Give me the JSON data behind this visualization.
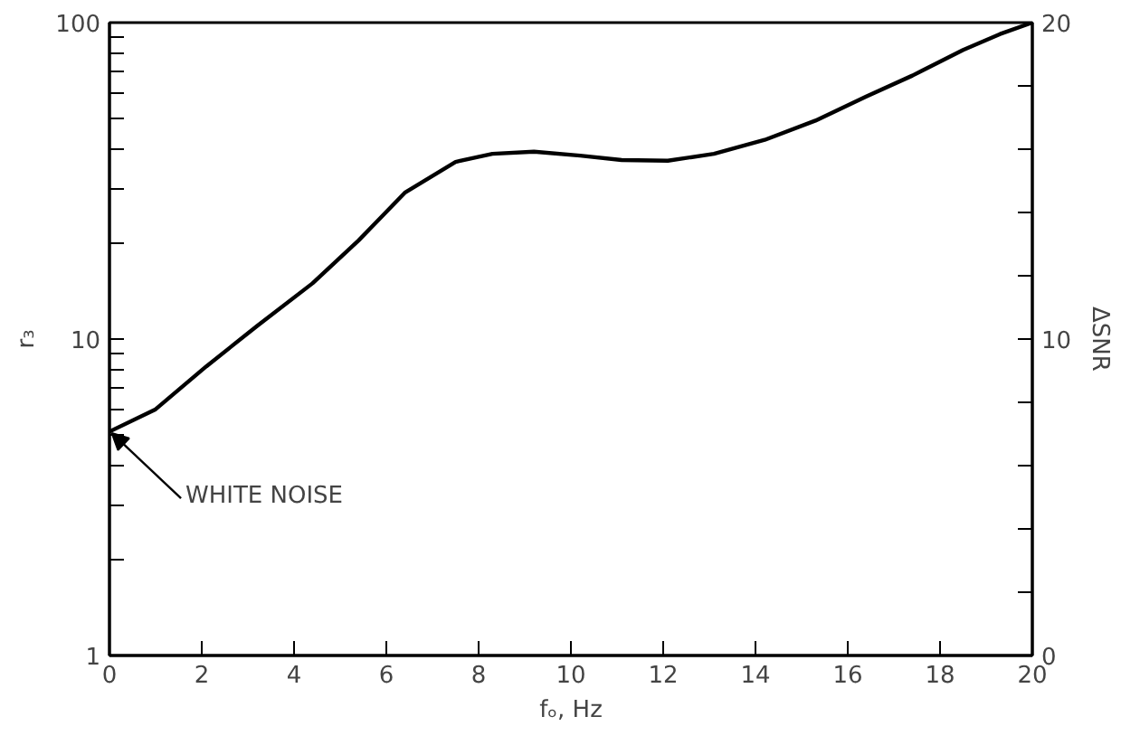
{
  "chart_data": {
    "type": "line",
    "xlabel": "fₒ, Hz",
    "ylabel": "r₃",
    "y2label": "ΔSNR",
    "log": "y",
    "grid": false,
    "xlim": [
      0,
      20
    ],
    "xticks": [
      0,
      2,
      4,
      6,
      8,
      10,
      12,
      14,
      16,
      18,
      20
    ],
    "ylim": [
      1,
      100
    ],
    "yticks": [
      1,
      {
        "value": 2,
        "label": null
      },
      {
        "value": 3,
        "label": null
      },
      {
        "value": 4,
        "label": null
      },
      {
        "value": 5,
        "label": null
      },
      {
        "value": 6,
        "label": null
      },
      {
        "value": 7,
        "label": null
      },
      {
        "value": 8,
        "label": null
      },
      {
        "value": 9,
        "label": null
      },
      10,
      {
        "value": 20,
        "label": null
      },
      {
        "value": 30,
        "label": null
      },
      {
        "value": 40,
        "label": null
      },
      {
        "value": 50,
        "label": null
      },
      {
        "value": 60,
        "label": null
      },
      {
        "value": 70,
        "label": null
      },
      {
        "value": 80,
        "label": null
      },
      {
        "value": 90,
        "label": null
      },
      100
    ],
    "y2lim": [
      0,
      20
    ],
    "y2ticks": [
      0,
      {
        "value": 2,
        "label": null
      },
      {
        "value": 4,
        "label": null
      },
      {
        "value": 6,
        "label": null
      },
      {
        "value": 8,
        "label": null
      },
      10,
      {
        "value": 12,
        "label": null
      },
      {
        "value": 14,
        "label": null
      },
      {
        "value": 16,
        "label": null
      },
      {
        "value": 18,
        "label": null
      },
      20
    ],
    "x": [
      0,
      1.0,
      2.1,
      3.2,
      4.4,
      5.4,
      6.4,
      7.5,
      8.3,
      9.2,
      10.2,
      11.1,
      12.1,
      13.1,
      14.2,
      15.3,
      16.4,
      17.4,
      18.5,
      19.3,
      20
    ],
    "series": [
      {
        "color": "#000000",
        "values": [
          5.1,
          6.0,
          8.2,
          11.0,
          15.0,
          20.5,
          29,
          36.3,
          38.5,
          39.1,
          38.0,
          36.8,
          36.6,
          38.5,
          42.6,
          49,
          58.4,
          68,
          82,
          92,
          100
        ]
      }
    ],
    "annotations": [
      {
        "text": "WHITE NOISE",
        "x": 0,
        "y": 5.1
      }
    ]
  }
}
